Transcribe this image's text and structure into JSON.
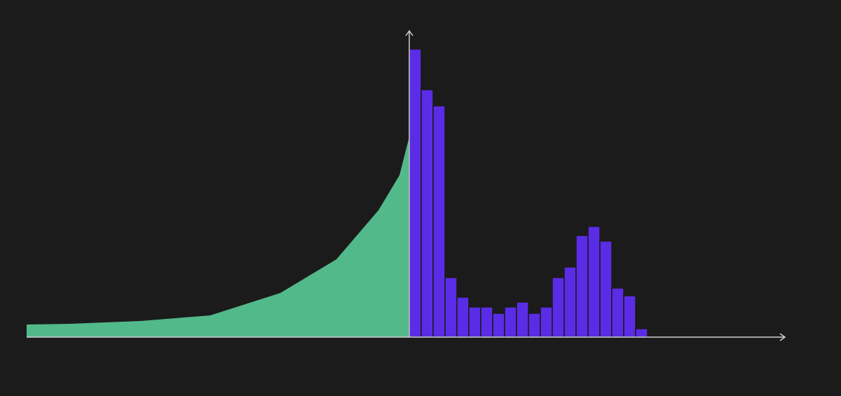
{
  "chart_data": [
    {
      "type": "area",
      "color": "#52b98a",
      "x": [
        -546,
        -484,
        -384,
        -284,
        -184,
        -104,
        -44,
        -14,
        0
      ],
      "values": [
        18,
        19,
        23,
        31,
        63,
        111,
        181,
        231,
        286
      ],
      "xlim": [
        -546,
        536
      ],
      "ylim": [
        0,
        437
      ]
    },
    {
      "type": "histogram",
      "color": "#5b2ce6",
      "bins": [
        0,
        17,
        34,
        51,
        68,
        85,
        102,
        119,
        136,
        153,
        170,
        187,
        204,
        221,
        238,
        255,
        272,
        289,
        306,
        323,
        340
      ],
      "values": [
        411,
        353,
        330,
        85,
        57,
        43,
        43,
        34,
        43,
        50,
        34,
        43,
        85,
        100,
        145,
        158,
        137,
        70,
        59,
        12
      ],
      "xlim": [
        -546,
        536
      ],
      "ylim": [
        0,
        437
      ]
    }
  ]
}
